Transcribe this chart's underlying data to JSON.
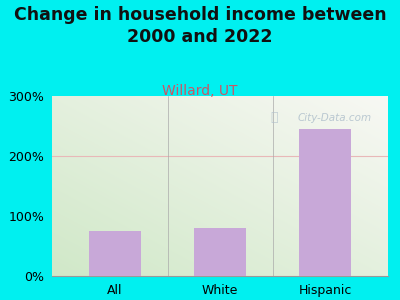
{
  "title": "Change in household income between\n2000 and 2022",
  "subtitle": "Willard, UT",
  "categories": [
    "All",
    "White",
    "Hispanic"
  ],
  "values": [
    75,
    80,
    245
  ],
  "bar_color": "#c8a8d8",
  "title_fontsize": 12.5,
  "title_color": "#111111",
  "subtitle_fontsize": 10,
  "subtitle_color": "#cc5566",
  "background_color": "#00f0f0",
  "plot_bg_topleft": "#d0e8c8",
  "plot_bg_bottomright": "#f8f8f4",
  "ylim": [
    0,
    300
  ],
  "yticks": [
    0,
    100,
    200,
    300
  ],
  "ytick_labels": [
    "0%",
    "100%",
    "200%",
    "300%"
  ],
  "grid_color": "#e8b8b8",
  "watermark": "City-Data.com",
  "watermark_color": "#b0c0cc",
  "tick_label_fontsize": 9,
  "separator_color": "#aaaaaa"
}
